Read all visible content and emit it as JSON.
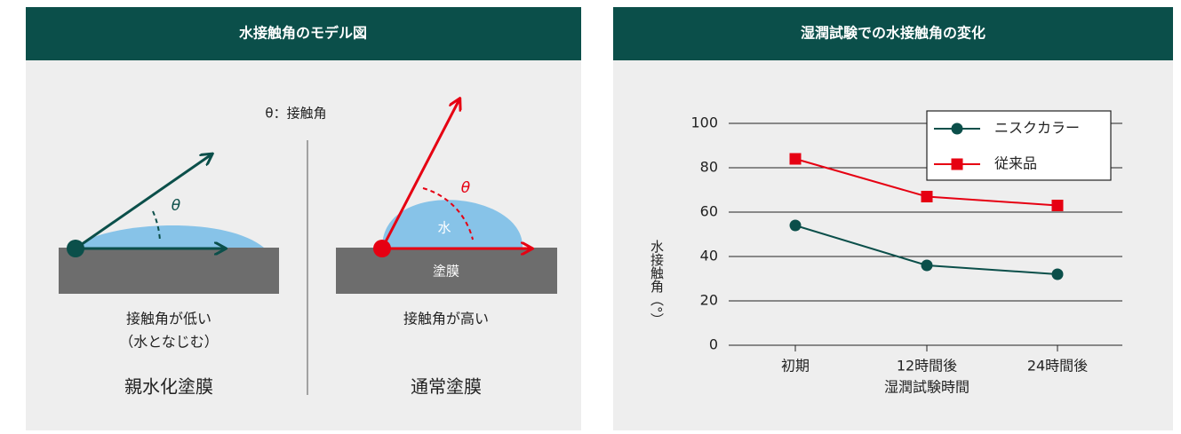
{
  "left_panel": {
    "title": "水接触角のモデル図",
    "legend": "θ：接触角",
    "theta_left": "θ",
    "theta_right": "θ",
    "water": "水",
    "film": "塗膜",
    "left_caption_1": "接触角が低い",
    "left_caption_2": "（水となじむ）",
    "left_name": "親水化塗膜",
    "right_caption": "接触角が高い",
    "right_name": "通常塗膜"
  },
  "chart_data": {
    "type": "line",
    "title": "湿潤試験での水接触角の変化",
    "ylabel": "水接触角（°）",
    "xlabel": "湿潤試験時間",
    "categories": [
      "初期",
      "12時間後",
      "24時間後"
    ],
    "series": [
      {
        "name": "ニスクカラー",
        "color": "#0b4f4a",
        "marker": "circle",
        "values": [
          54,
          36,
          32
        ]
      },
      {
        "name": "従来品",
        "color": "#e60012",
        "marker": "square",
        "values": [
          84,
          67,
          63
        ]
      }
    ],
    "ylim": [
      0,
      100
    ],
    "yticks": [
      0,
      20,
      40,
      60,
      80,
      100
    ],
    "grid": true,
    "legend": "upper right"
  }
}
